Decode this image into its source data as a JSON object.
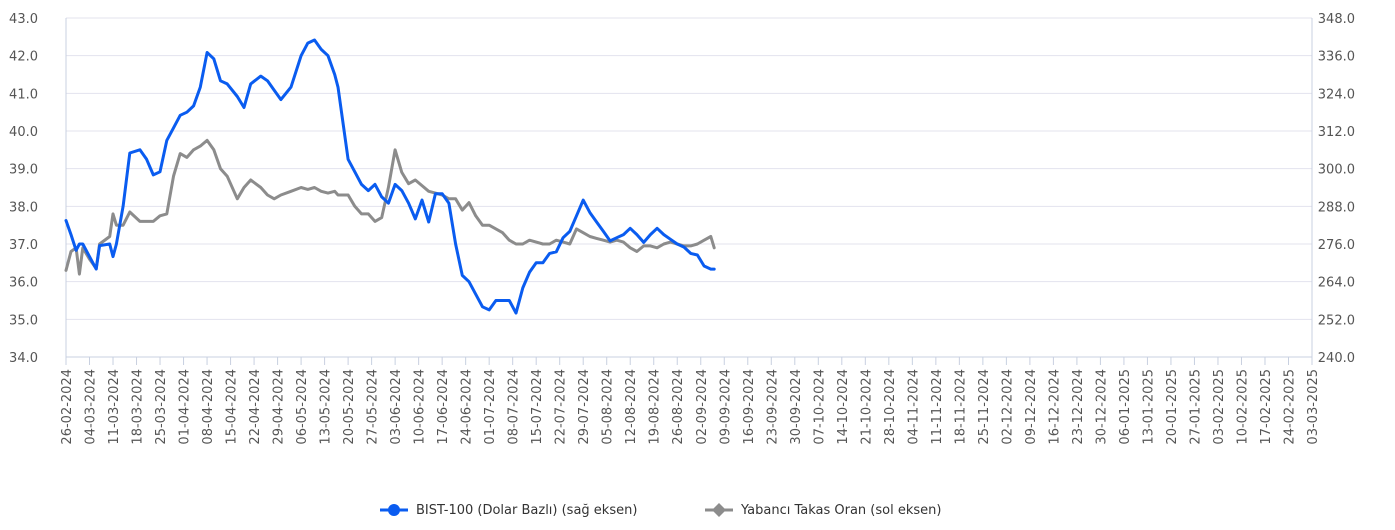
{
  "chart_data": {
    "type": "line",
    "left_axis": {
      "ylim": [
        34.0,
        43.0
      ],
      "ticks": [
        "43.0",
        "42.0",
        "41.0",
        "40.0",
        "39.0",
        "38.0",
        "37.0",
        "36.0",
        "35.0",
        "34.0"
      ]
    },
    "right_axis": {
      "ylim": [
        240.0,
        348.0
      ],
      "ticks": [
        "348.0",
        "336.0",
        "324.0",
        "312.0",
        "300.0",
        "288.0",
        "276.0",
        "264.0",
        "252.0",
        "240.0"
      ]
    },
    "x_ticks": [
      "26-02-2024",
      "04-03-2024",
      "11-03-2024",
      "18-03-2024",
      "25-03-2024",
      "01-04-2024",
      "08-04-2024",
      "15-04-2024",
      "22-04-2024",
      "29-04-2024",
      "06-05-2024",
      "13-05-2024",
      "20-05-2024",
      "27-05-2024",
      "03-06-2024",
      "10-06-2024",
      "17-06-2024",
      "24-06-2024",
      "01-07-2024",
      "08-07-2024",
      "15-07-2024",
      "22-07-2024",
      "29-07-2024",
      "05-08-2024",
      "12-08-2024",
      "19-08-2024",
      "26-08-2024",
      "02-09-2024",
      "09-09-2024",
      "16-09-2024",
      "23-09-2024",
      "30-09-2024",
      "07-10-2024",
      "14-10-2024",
      "21-10-2024",
      "28-10-2024",
      "04-11-2024",
      "11-11-2024",
      "18-11-2024",
      "25-11-2024",
      "02-12-2024",
      "09-12-2024",
      "16-12-2024",
      "23-12-2024",
      "30-12-2024",
      "06-01-2025",
      "13-01-2025",
      "20-01-2025",
      "27-01-2025",
      "03-02-2025",
      "10-02-2025",
      "17-02-2025",
      "24-02-2025",
      "03-03-2025"
    ],
    "grid": true,
    "legend_position": "bottom-center",
    "series": [
      {
        "name": "BIST-100 (Dolar Bazlı) (sağ eksen)",
        "axis": "right",
        "color": "#0a5cf0",
        "marker": "circle",
        "points": [
          [
            0,
            283.5
          ],
          [
            1.5,
            279
          ],
          [
            3,
            274
          ],
          [
            4,
            276
          ],
          [
            5,
            276
          ],
          [
            7,
            272
          ],
          [
            9,
            268
          ],
          [
            10,
            275.5
          ],
          [
            13,
            276
          ],
          [
            14,
            272
          ],
          [
            15,
            276
          ],
          [
            17,
            288
          ],
          [
            19,
            305
          ],
          [
            22,
            306
          ],
          [
            24,
            303
          ],
          [
            26,
            298
          ],
          [
            28,
            299
          ],
          [
            30,
            309
          ],
          [
            32,
            313
          ],
          [
            34,
            317
          ],
          [
            36,
            318
          ],
          [
            38,
            320
          ],
          [
            40,
            326
          ],
          [
            42,
            337
          ],
          [
            44,
            335
          ],
          [
            46,
            328
          ],
          [
            48,
            327
          ],
          [
            51,
            323
          ],
          [
            53,
            319.5
          ],
          [
            55,
            327
          ],
          [
            58,
            329.5
          ],
          [
            60,
            328
          ],
          [
            62,
            325
          ],
          [
            64,
            322
          ],
          [
            67,
            326
          ],
          [
            70,
            336
          ],
          [
            72,
            340
          ],
          [
            74,
            341
          ],
          [
            76,
            338
          ],
          [
            78,
            336
          ],
          [
            80,
            330
          ],
          [
            81,
            326
          ],
          [
            84,
            303
          ],
          [
            86,
            299
          ],
          [
            88,
            295
          ],
          [
            90,
            293
          ],
          [
            92,
            295
          ],
          [
            94,
            291
          ],
          [
            96,
            289
          ],
          [
            98,
            295
          ],
          [
            100,
            293
          ],
          [
            102,
            289
          ],
          [
            104,
            284
          ],
          [
            106,
            290
          ],
          [
            108,
            283
          ],
          [
            110,
            292
          ],
          [
            112,
            292
          ],
          [
            114,
            289
          ],
          [
            116,
            276
          ],
          [
            118,
            266
          ],
          [
            120,
            264
          ],
          [
            122,
            260
          ],
          [
            124,
            256
          ],
          [
            126,
            255
          ],
          [
            128,
            258
          ],
          [
            130,
            258
          ],
          [
            132,
            258
          ],
          [
            134,
            254
          ],
          [
            136,
            262
          ],
          [
            138,
            267
          ],
          [
            140,
            270
          ],
          [
            142,
            270
          ],
          [
            144,
            273
          ],
          [
            146,
            273.5
          ],
          [
            148,
            278
          ],
          [
            150,
            280
          ],
          [
            152,
            285
          ],
          [
            154,
            290
          ],
          [
            156,
            286
          ],
          [
            158,
            283
          ],
          [
            160,
            280
          ],
          [
            162,
            277
          ],
          [
            164,
            278
          ],
          [
            166,
            279
          ],
          [
            168,
            281
          ],
          [
            170,
            279
          ],
          [
            172,
            276.5
          ],
          [
            174,
            279
          ],
          [
            176,
            281
          ],
          [
            178,
            279
          ],
          [
            180,
            277.5
          ],
          [
            182,
            276
          ],
          [
            184,
            275
          ],
          [
            186,
            273
          ],
          [
            188,
            272.5
          ],
          [
            190,
            269
          ],
          [
            192,
            268
          ],
          [
            193,
            268
          ]
        ]
      },
      {
        "name": "Yabancı Takas Oran (sol eksen)",
        "axis": "left",
        "color": "#8c8c8c",
        "marker": "diamond",
        "points": [
          [
            0,
            36.3
          ],
          [
            1.5,
            36.8
          ],
          [
            3,
            36.9
          ],
          [
            4,
            36.2
          ],
          [
            5,
            36.9
          ],
          [
            7,
            36.6
          ],
          [
            9,
            36.35
          ],
          [
            10,
            37.0
          ],
          [
            13,
            37.2
          ],
          [
            14,
            37.8
          ],
          [
            15,
            37.5
          ],
          [
            17,
            37.5
          ],
          [
            19,
            37.85
          ],
          [
            22,
            37.6
          ],
          [
            24,
            37.6
          ],
          [
            26,
            37.6
          ],
          [
            28,
            37.75
          ],
          [
            30,
            37.8
          ],
          [
            32,
            38.8
          ],
          [
            34,
            39.4
          ],
          [
            36,
            39.3
          ],
          [
            38,
            39.5
          ],
          [
            40,
            39.6
          ],
          [
            42,
            39.75
          ],
          [
            44,
            39.5
          ],
          [
            46,
            39.0
          ],
          [
            48,
            38.8
          ],
          [
            51,
            38.2
          ],
          [
            53,
            38.5
          ],
          [
            55,
            38.7
          ],
          [
            58,
            38.5
          ],
          [
            60,
            38.3
          ],
          [
            62,
            38.2
          ],
          [
            64,
            38.3
          ],
          [
            67,
            38.4
          ],
          [
            70,
            38.5
          ],
          [
            72,
            38.45
          ],
          [
            74,
            38.5
          ],
          [
            76,
            38.4
          ],
          [
            78,
            38.35
          ],
          [
            80,
            38.4
          ],
          [
            81,
            38.3
          ],
          [
            84,
            38.3
          ],
          [
            86,
            38.0
          ],
          [
            88,
            37.8
          ],
          [
            90,
            37.8
          ],
          [
            92,
            37.6
          ],
          [
            94,
            37.7
          ],
          [
            96,
            38.5
          ],
          [
            98,
            39.5
          ],
          [
            100,
            38.9
          ],
          [
            102,
            38.6
          ],
          [
            104,
            38.7
          ],
          [
            106,
            38.55
          ],
          [
            108,
            38.4
          ],
          [
            110,
            38.35
          ],
          [
            112,
            38.3
          ],
          [
            114,
            38.2
          ],
          [
            116,
            38.2
          ],
          [
            118,
            37.9
          ],
          [
            120,
            38.1
          ],
          [
            122,
            37.75
          ],
          [
            124,
            37.5
          ],
          [
            126,
            37.5
          ],
          [
            128,
            37.4
          ],
          [
            130,
            37.3
          ],
          [
            132,
            37.1
          ],
          [
            134,
            37.0
          ],
          [
            136,
            37.0
          ],
          [
            138,
            37.1
          ],
          [
            140,
            37.05
          ],
          [
            142,
            37.0
          ],
          [
            144,
            37.0
          ],
          [
            146,
            37.1
          ],
          [
            148,
            37.05
          ],
          [
            150,
            37.0
          ],
          [
            152,
            37.4
          ],
          [
            154,
            37.3
          ],
          [
            156,
            37.2
          ],
          [
            158,
            37.15
          ],
          [
            160,
            37.1
          ],
          [
            162,
            37.05
          ],
          [
            164,
            37.1
          ],
          [
            166,
            37.05
          ],
          [
            168,
            36.9
          ],
          [
            170,
            36.8
          ],
          [
            172,
            36.95
          ],
          [
            174,
            36.95
          ],
          [
            176,
            36.9
          ],
          [
            178,
            37.0
          ],
          [
            180,
            37.05
          ],
          [
            182,
            37.0
          ],
          [
            184,
            36.95
          ],
          [
            186,
            36.95
          ],
          [
            188,
            37.0
          ],
          [
            190,
            37.1
          ],
          [
            192,
            37.2
          ],
          [
            193,
            36.9
          ]
        ]
      }
    ]
  }
}
